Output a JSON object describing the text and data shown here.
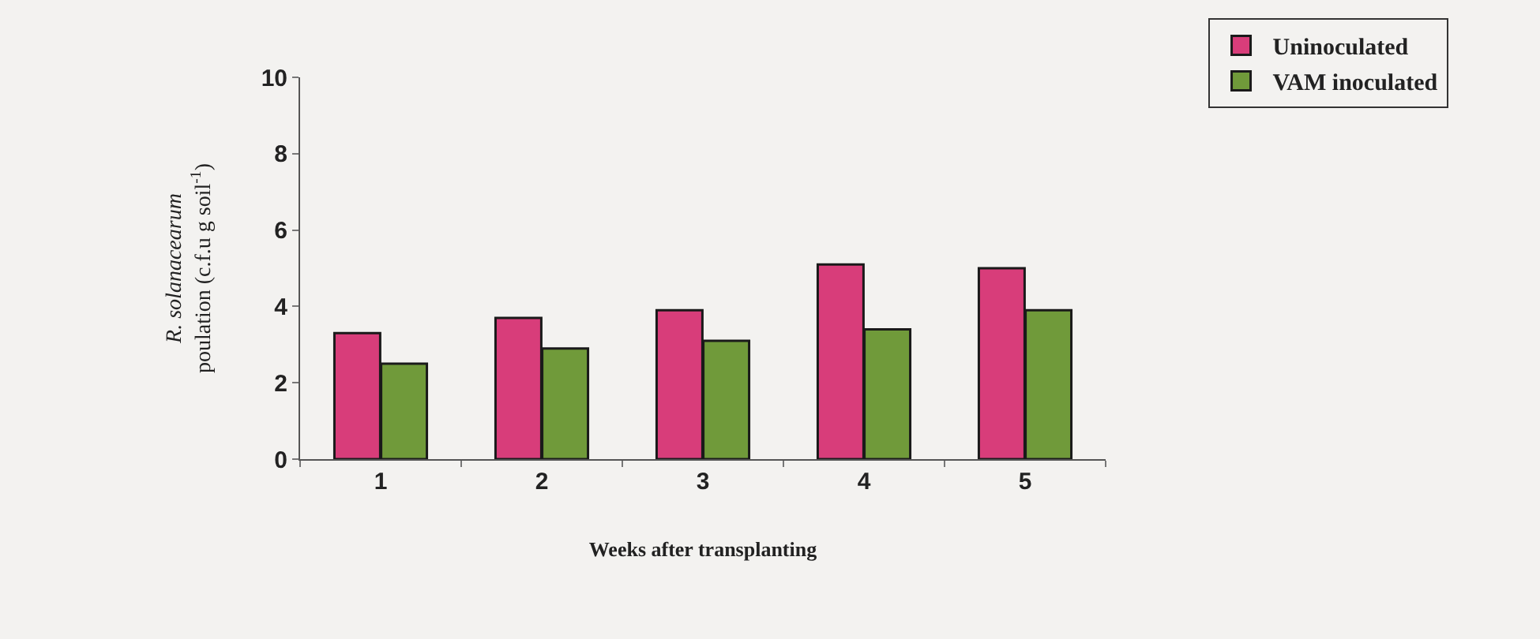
{
  "chart_data": {
    "type": "bar",
    "xlabel": "Weeks after transplanting",
    "ylabel": "R. solanacearum\npoulation (c.f.u g soil$^{-1}$)",
    "categories": [
      "1",
      "2",
      "3",
      "4",
      "5"
    ],
    "series": [
      {
        "name": "Uninoculated",
        "color": "#d83d7a",
        "values": [
          3.3,
          3.7,
          3.9,
          5.1,
          5.0
        ]
      },
      {
        "name": "VAM inoculated",
        "color": "#709a3a",
        "values": [
          2.5,
          2.9,
          3.1,
          3.4,
          3.9
        ]
      }
    ],
    "ylim": [
      0,
      10
    ],
    "yticks": [
      0,
      2,
      4,
      6,
      8,
      10
    ],
    "legend": "top right"
  }
}
